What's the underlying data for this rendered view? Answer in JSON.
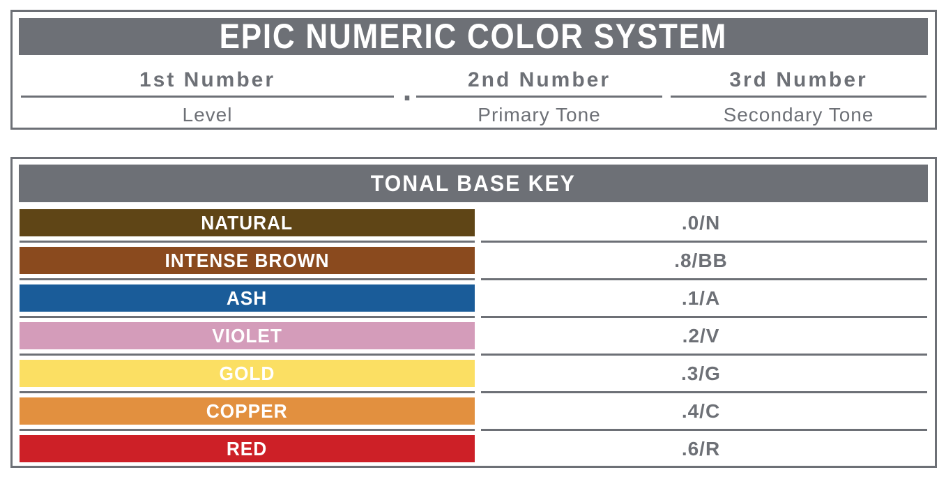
{
  "colors": {
    "gray": "#6d7076",
    "white": "#ffffff"
  },
  "title_box": {
    "title": "EPIC NUMERIC COLOR SYSTEM",
    "separator_dot": ".",
    "columns": [
      {
        "number": "1st Number",
        "meaning": "Level"
      },
      {
        "number": "2nd Number",
        "meaning": "Primary Tone"
      },
      {
        "number": "3rd Number",
        "meaning": "Secondary Tone"
      }
    ]
  },
  "tonal_base_key": {
    "header": "TONAL BASE KEY",
    "rows": [
      {
        "name": "NATURAL",
        "code": ".0/N",
        "color": "#5f4516"
      },
      {
        "name": "INTENSE BROWN",
        "code": ".8/BB",
        "color": "#8a4a1e"
      },
      {
        "name": "ASH",
        "code": ".1/A",
        "color": "#1a5c99"
      },
      {
        "name": "VIOLET",
        "code": ".2/V",
        "color": "#d49cba"
      },
      {
        "name": "GOLD",
        "code": ".3/G",
        "color": "#fbdf63"
      },
      {
        "name": "COPPER",
        "code": ".4/C",
        "color": "#e2903f"
      },
      {
        "name": "RED",
        "code": ".6/R",
        "color": "#cd2027"
      }
    ]
  }
}
